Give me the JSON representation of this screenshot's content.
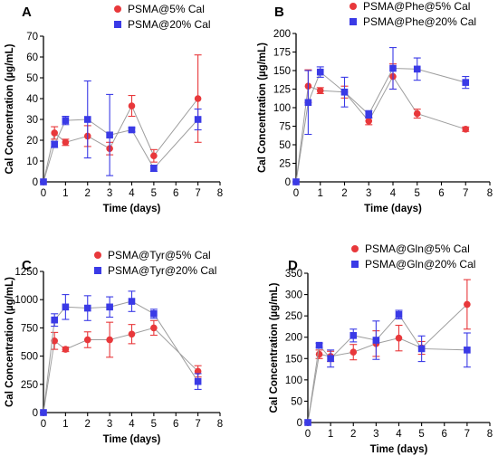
{
  "colors": {
    "red_series": "#e8383b",
    "blue_series": "#3a3ae6",
    "connector": "#9e9e9e",
    "axis": "#000000"
  },
  "chart_data": [
    {
      "type": "scatter",
      "panel": "A",
      "xlabel": "Time (days)",
      "ylabel": "Cal Concentration (µg/mL)",
      "xlim": [
        0,
        8
      ],
      "ylim": [
        0,
        70
      ],
      "xticks": [
        0,
        1,
        2,
        3,
        4,
        5,
        6,
        7,
        8
      ],
      "yticks": [
        0,
        10,
        20,
        30,
        40,
        50,
        60,
        70
      ],
      "legend_position": "top-right",
      "series": [
        {
          "name": "PSMA@5% Cal",
          "color": "#e8383b",
          "marker": "circle",
          "x": [
            0,
            0.5,
            1,
            2,
            3,
            4,
            5,
            7
          ],
          "y": [
            0,
            23.5,
            19,
            22,
            16,
            36.5,
            12.5,
            40
          ],
          "err": [
            0,
            3,
            1.5,
            5,
            3,
            5,
            3,
            21
          ]
        },
        {
          "name": "PSMA@20% Cal",
          "color": "#3a3ae6",
          "marker": "square",
          "x": [
            0,
            0.5,
            1,
            2,
            3,
            4,
            5,
            7
          ],
          "y": [
            0,
            18,
            29.5,
            30,
            22.5,
            25,
            6.5,
            30
          ],
          "err": [
            0,
            1.5,
            2,
            18.5,
            19.5,
            1,
            1.5,
            5
          ]
        }
      ]
    },
    {
      "type": "scatter",
      "panel": "B",
      "xlabel": "Time (days)",
      "ylabel": "Cal Concentration (µg/mL)",
      "xlim": [
        0,
        8
      ],
      "ylim": [
        0,
        200
      ],
      "xticks": [
        0,
        1,
        2,
        3,
        4,
        5,
        6,
        7,
        8
      ],
      "yticks": [
        0,
        25,
        50,
        75,
        100,
        125,
        150,
        175,
        200
      ],
      "legend_position": "top-right",
      "series": [
        {
          "name": "PSMA@Phe@5% Cal",
          "color": "#e8383b",
          "marker": "circle",
          "x": [
            0,
            0.5,
            1,
            2,
            3,
            4,
            5,
            7
          ],
          "y": [
            0,
            129,
            123,
            121,
            82,
            142,
            92,
            71
          ],
          "err": [
            0,
            22,
            4,
            8,
            5,
            17,
            6,
            3
          ]
        },
        {
          "name": "PSMA@Phe@20% Cal",
          "color": "#3a3ae6",
          "marker": "square",
          "x": [
            0,
            0.5,
            1,
            2,
            3,
            4,
            5,
            7
          ],
          "y": [
            0,
            107,
            148,
            121,
            91,
            153,
            152,
            134
          ],
          "err": [
            0,
            43,
            7,
            20,
            5,
            28,
            15,
            8
          ]
        }
      ]
    },
    {
      "type": "scatter",
      "panel": "C",
      "xlabel": "Time (days)",
      "ylabel": "Cal Concentration (µg/mL)",
      "xlim": [
        0,
        8
      ],
      "ylim": [
        0,
        1250
      ],
      "xticks": [
        0,
        1,
        2,
        3,
        4,
        5,
        6,
        7,
        8
      ],
      "yticks": [
        0,
        250,
        500,
        750,
        1000,
        1250
      ],
      "legend_position": "top-right",
      "series": [
        {
          "name": "PSMA@Tyr@5% Cal",
          "color": "#e8383b",
          "marker": "circle",
          "x": [
            0,
            0.5,
            1,
            2,
            3,
            4,
            5,
            7
          ],
          "y": [
            0,
            635,
            560,
            645,
            645,
            695,
            750,
            365
          ],
          "err": [
            0,
            75,
            20,
            70,
            155,
            85,
            65,
            50
          ]
        },
        {
          "name": "PSMA@Tyr@20% Cal",
          "color": "#3a3ae6",
          "marker": "square",
          "x": [
            0,
            0.5,
            1,
            2,
            3,
            4,
            5,
            7
          ],
          "y": [
            0,
            820,
            935,
            925,
            935,
            985,
            875,
            275
          ],
          "err": [
            0,
            55,
            110,
            110,
            90,
            90,
            40,
            70
          ]
        }
      ]
    },
    {
      "type": "scatter",
      "panel": "D",
      "xlabel": "Time (days)",
      "ylabel": "Cal Concentration (µg/mL)",
      "xlim": [
        0,
        8
      ],
      "ylim": [
        0,
        350
      ],
      "xticks": [
        0,
        1,
        2,
        3,
        4,
        5,
        6,
        7,
        8
      ],
      "yticks": [
        0,
        50,
        100,
        150,
        200,
        250,
        300,
        350
      ],
      "legend_position": "top-right",
      "series": [
        {
          "name": "PSMA@Gln@5% Cal",
          "color": "#e8383b",
          "marker": "circle",
          "x": [
            0,
            0.5,
            1,
            2,
            3,
            4,
            5,
            7
          ],
          "y": [
            0,
            160,
            155,
            165,
            185,
            198,
            175,
            277
          ],
          "err": [
            0,
            10,
            12,
            18,
            30,
            30,
            15,
            58
          ]
        },
        {
          "name": "PSMA@Gln@20% Cal",
          "color": "#3a3ae6",
          "marker": "square",
          "x": [
            0,
            0.5,
            1,
            2,
            3,
            4,
            5,
            7
          ],
          "y": [
            0,
            181,
            150,
            204,
            193,
            253,
            173,
            170
          ],
          "err": [
            0,
            5,
            20,
            15,
            45,
            10,
            30,
            40
          ]
        }
      ]
    }
  ]
}
